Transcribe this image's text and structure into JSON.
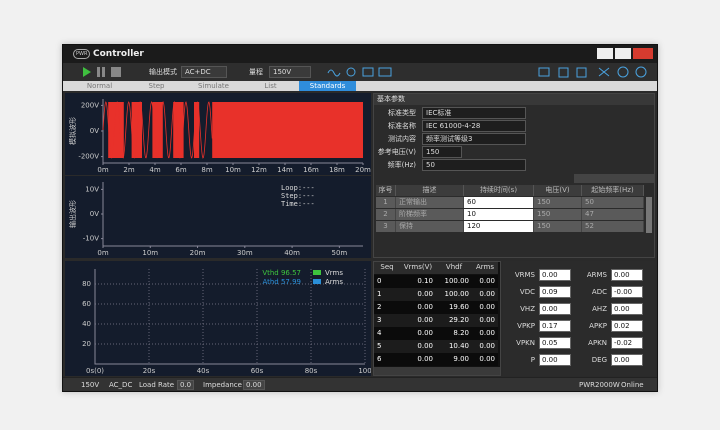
{
  "window": {
    "logo": "PWR",
    "title": "Controller"
  },
  "toolbar": {
    "mode_label": "输出模式",
    "mode": "AC+DC",
    "range_label": "量程",
    "range": "150V"
  },
  "tabs": [
    "Normal",
    "Step",
    "Simulate",
    "List",
    "Standards"
  ],
  "active_tab": 4,
  "charts": [
    {
      "y_label": "模拟波形",
      "ylim": [
        -250,
        250
      ],
      "yticks": [
        {
          "value": 200,
          "label": "200V"
        },
        {
          "value": 0,
          "label": "0V"
        },
        {
          "value": -200,
          "label": "-200V"
        }
      ],
      "xlim": [
        0,
        20
      ],
      "xticks": [
        {
          "value": 0,
          "label": "0m"
        },
        {
          "value": 2,
          "label": "2m"
        },
        {
          "value": 4,
          "label": "4m"
        },
        {
          "value": 6,
          "label": "6m"
        },
        {
          "value": 8,
          "label": "8m"
        },
        {
          "value": 10,
          "label": "10m"
        },
        {
          "value": 12,
          "label": "12m"
        },
        {
          "value": 14,
          "label": "14m"
        },
        {
          "value": 16,
          "label": "16m"
        },
        {
          "value": 18,
          "label": "18m"
        },
        {
          "value": 20,
          "label": "20m"
        }
      ]
    },
    {
      "y_label": "输出波形",
      "ylim": [
        -13,
        13
      ],
      "yticks": [
        {
          "value": 10,
          "label": "10V"
        },
        {
          "value": 0,
          "label": "0V"
        },
        {
          "value": -10,
          "label": "-10V"
        }
      ],
      "xlim": [
        0,
        55
      ],
      "xticks": [
        {
          "value": 0,
          "label": "0m"
        },
        {
          "value": 10,
          "label": "10m"
        },
        {
          "value": 20,
          "label": "20m"
        },
        {
          "value": 30,
          "label": "30m"
        },
        {
          "value": 40,
          "label": "40m"
        },
        {
          "value": 50,
          "label": "50m"
        }
      ],
      "status": [
        "Loop:---",
        "Step:---",
        "Time:---"
      ]
    },
    {
      "ylim": [
        0,
        95
      ],
      "yticks": [
        20,
        40,
        60,
        80
      ],
      "xlim": [
        0,
        100
      ],
      "xticks": [
        {
          "value": 0,
          "label": "0s(0)"
        },
        {
          "value": 20,
          "label": "20s"
        },
        {
          "value": 40,
          "label": "40s"
        },
        {
          "value": 60,
          "label": "60s"
        },
        {
          "value": 80,
          "label": "80s"
        },
        100
      ],
      "annotations": [
        "Vthd 96.57",
        "Athd 57.99"
      ],
      "series": [
        {
          "name": "Vrms",
          "color": "#3ec43e"
        },
        {
          "name": "Arms",
          "color": "#2a8fd8"
        }
      ],
      "grid": true
    }
  ],
  "standards": {
    "title": "基本参数",
    "fields": [
      {
        "label": "标准类型",
        "value": "IEC标准"
      },
      {
        "label": "标准名称",
        "value": "IEC 61000-4-28"
      },
      {
        "label": "测试内容",
        "value": "频率测试等级3"
      },
      {
        "label": "参考电压(V)",
        "value": 150
      },
      {
        "label": "频率(Hz)",
        "value": 50
      }
    ],
    "table": {
      "header": [
        "序号",
        "描述",
        "持续时间(s)",
        "电压(V)",
        "起始频率(Hz)"
      ],
      "rows": [
        [
          1,
          "正常输出",
          60,
          150,
          50
        ],
        [
          2,
          "阶梯频率",
          10,
          150,
          47
        ],
        [
          3,
          "保持",
          120,
          150,
          52
        ]
      ]
    }
  },
  "harmonics": {
    "header": [
      "Seq",
      "Vrms(V)",
      "Vhdf",
      "Arms"
    ],
    "rows": [
      [
        0,
        "0.10",
        "100.00",
        "0.00"
      ],
      [
        1,
        "0.00",
        "100.00",
        "0.00"
      ],
      [
        2,
        "0.00",
        "19.60",
        "0.00"
      ],
      [
        3,
        "0.00",
        "29.20",
        "0.00"
      ],
      [
        4,
        "0.00",
        "8.20",
        "0.00"
      ],
      [
        5,
        "0.00",
        "10.40",
        "0.00"
      ],
      [
        6,
        "0.00",
        "9.00",
        "0.00"
      ]
    ]
  },
  "measurements": [
    {
      "label": "VRMS",
      "value": "0.00"
    },
    {
      "label": "ARMS",
      "value": "0.00"
    },
    {
      "label": "VDC",
      "value": "0.09"
    },
    {
      "label": "ADC",
      "value": "-0.00"
    },
    {
      "label": "VHZ",
      "value": "0.00"
    },
    {
      "label": "AHZ",
      "value": "0.00"
    },
    {
      "label": "VPKP",
      "value": "0.17"
    },
    {
      "label": "APKP",
      "value": "0.02"
    },
    {
      "label": "VPKN",
      "value": "0.05"
    },
    {
      "label": "APKN",
      "value": "-0.02"
    },
    {
      "label": "P",
      "value": "0.00"
    },
    {
      "label": "DEG",
      "value": "0.00"
    }
  ],
  "status": {
    "range": "150V",
    "mode": "AC_DC",
    "load_label": "Load Rate",
    "load": "0.0",
    "imp_label": "Impedance",
    "imp": "0.00",
    "device": "PWR2000W",
    "state": "Online"
  }
}
